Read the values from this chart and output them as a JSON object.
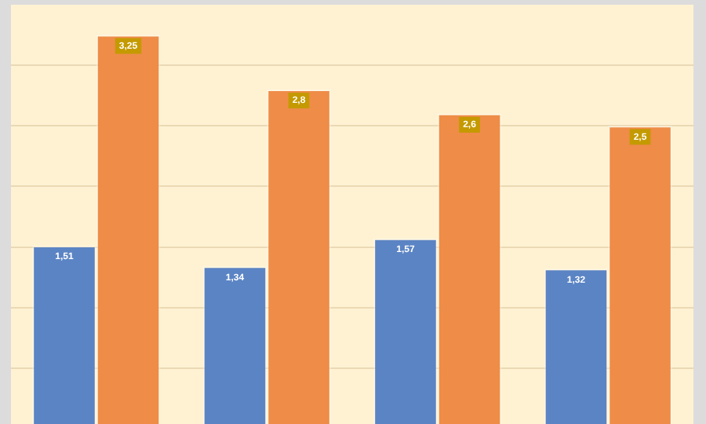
{
  "chart_data": {
    "type": "bar",
    "categories": [
      null,
      null,
      null,
      null
    ],
    "series": [
      {
        "color": "#5b84c4",
        "values": [
          1.51,
          1.34,
          1.57,
          1.32
        ],
        "value_labels": [
          "1,51",
          "1,34",
          "1,57",
          "1,32"
        ]
      },
      {
        "color": "#ee8c48",
        "values": [
          3.25,
          2.8,
          2.6,
          2.5
        ],
        "value_labels": [
          "3,25",
          "2,8",
          "2,6",
          "2,5"
        ]
      }
    ],
    "ylim": [
      0,
      3.5
    ],
    "yticks": [
      {
        "value": 0.5,
        "label": null
      },
      {
        "value": 1,
        "label": null
      },
      {
        "value": 1.5,
        "label": null
      },
      {
        "value": 2,
        "label": null
      },
      {
        "value": 2.5,
        "label": null
      },
      {
        "value": 3,
        "label": null
      }
    ],
    "grid": "y",
    "tick_labels": false,
    "legend": false
  }
}
